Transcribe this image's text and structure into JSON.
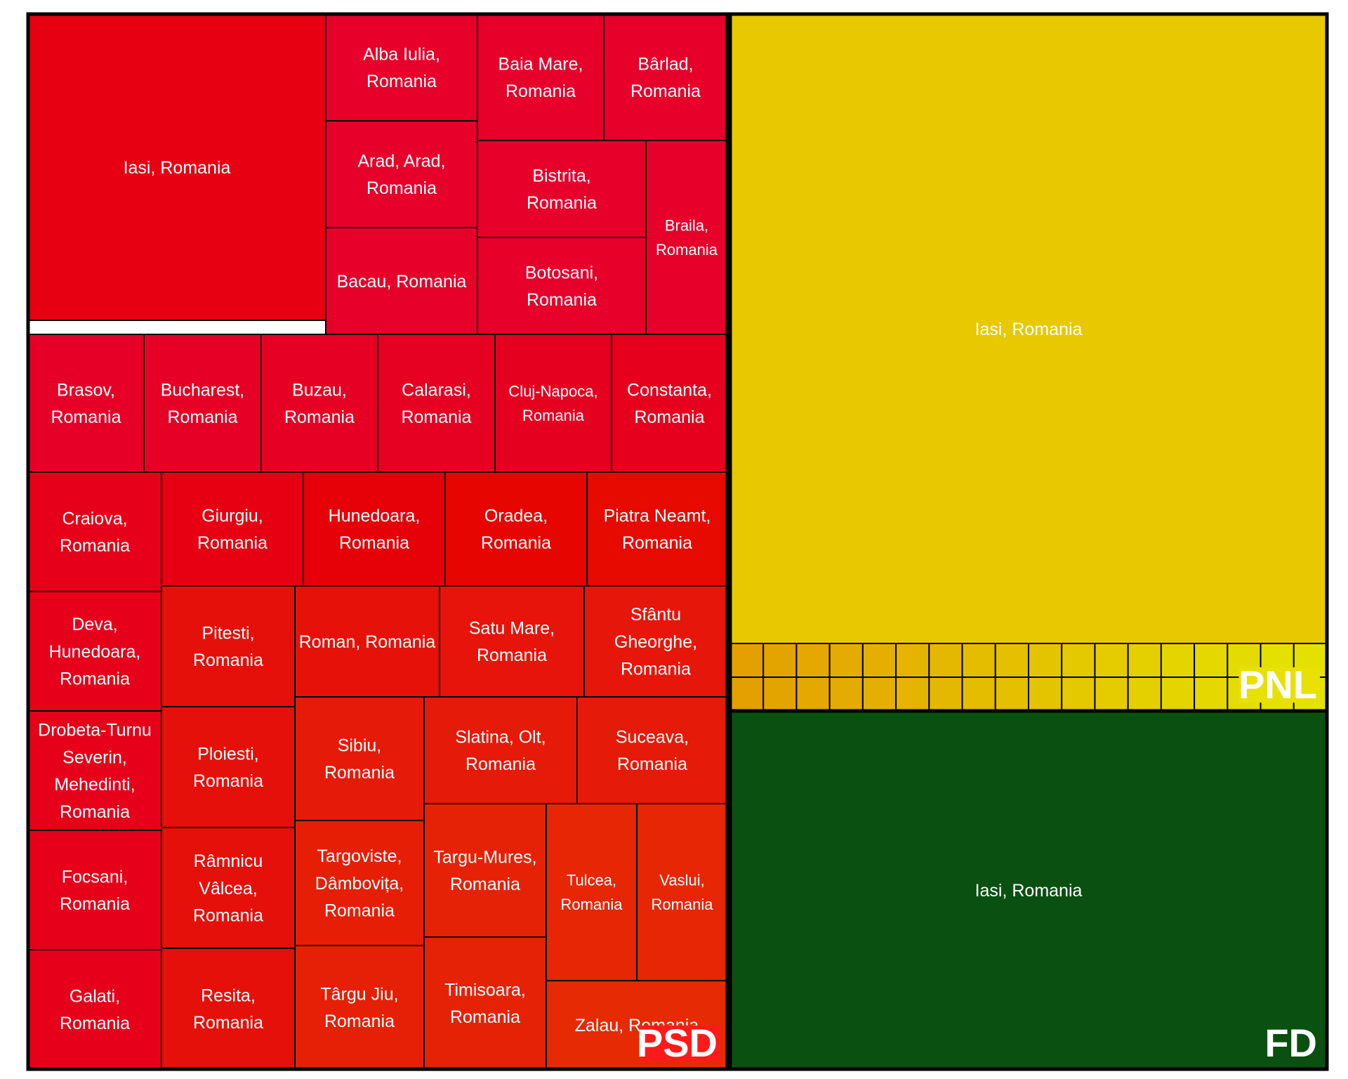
{
  "chart_data": {
    "type": "treemap",
    "title": "",
    "colors": {
      "PSD": "#e2001a",
      "PNL": "#e8c800",
      "FD": "#0a5010",
      "PSD_badge": "#ff1a1a",
      "PNL_badge": "#e8e000"
    },
    "groups": [
      {
        "name": "PSD",
        "label_position": "bottom-right",
        "items": [
          {
            "label": "Iasi, Romania",
            "value": 14.5,
            "color": "#e60012"
          },
          {
            "label": "Alba Iulia, Romania",
            "value": 2.45,
            "color": "#e6002a"
          },
          {
            "label": "Arad, Arad, Romania",
            "value": 2.45,
            "color": "#e6002a"
          },
          {
            "label": "Bacau, Romania",
            "value": 2.45,
            "color": "#e6002a"
          },
          {
            "label": "Baia Mare, Romania",
            "value": 2.45,
            "color": "#e6002a"
          },
          {
            "label": "Bârlad, Romania",
            "value": 2.45,
            "color": "#e6002a"
          },
          {
            "label": "Bistrita, Romania",
            "value": 2.45,
            "color": "#e6002a"
          },
          {
            "label": "Botosani, Romania",
            "value": 2.45,
            "color": "#e6002a"
          },
          {
            "label": "Braila, Romania",
            "value": 2.45,
            "color": "#e6002a"
          },
          {
            "label": "Brasov, Romania",
            "value": 2.45,
            "color": "#e60028"
          },
          {
            "label": "Bucharest, Romania",
            "value": 2.45,
            "color": "#e60026"
          },
          {
            "label": "Buzau, Romania",
            "value": 2.45,
            "color": "#e60024"
          },
          {
            "label": "Calarasi, Romania",
            "value": 2.45,
            "color": "#e60022"
          },
          {
            "label": "Cluj-Napoca, Romania",
            "value": 2.45,
            "color": "#e60020"
          },
          {
            "label": "Constanta, Romania",
            "value": 2.45,
            "color": "#e6001e"
          },
          {
            "label": "Craiova, Romania",
            "value": 2.45,
            "color": "#e6001a"
          },
          {
            "label": "Deva, Hunedoara, Romania",
            "value": 2.45,
            "color": "#e6001a"
          },
          {
            "label": "Drobeta-Turnu Severin, Mehedinti, Romania",
            "value": 2.45,
            "color": "#e6001a"
          },
          {
            "label": "Focsani, Romania",
            "value": 2.45,
            "color": "#e6001a"
          },
          {
            "label": "Galati, Romania",
            "value": 2.45,
            "color": "#e6001a"
          },
          {
            "label": "Giurgiu, Romania",
            "value": 2.45,
            "color": "#e60012"
          },
          {
            "label": "Hunedoara, Romania",
            "value": 2.45,
            "color": "#e60008"
          },
          {
            "label": "Oradea, Romania",
            "value": 2.45,
            "color": "#e60500"
          },
          {
            "label": "Piatra Neamt, Romania",
            "value": 2.45,
            "color": "#e60a00"
          },
          {
            "label": "Pitesti, Romania",
            "value": 2.45,
            "color": "#e6100a"
          },
          {
            "label": "Roman, Romania",
            "value": 2.45,
            "color": "#e6120a"
          },
          {
            "label": "Satu Mare, Romania",
            "value": 2.45,
            "color": "#e6140a"
          },
          {
            "label": "Sfântu Gheorghe, Romania",
            "value": 2.45,
            "color": "#e6160a"
          },
          {
            "label": "Ploiesti, Romania",
            "value": 2.45,
            "color": "#e6100a"
          },
          {
            "label": "Râmnicu Vâlcea, Romania",
            "value": 2.45,
            "color": "#e6100a"
          },
          {
            "label": "Resita, Romania",
            "value": 2.45,
            "color": "#e6100a"
          },
          {
            "label": "Sibiu, Romania",
            "value": 2.45,
            "color": "#e61a08"
          },
          {
            "label": "Slatina, Olt, Romania",
            "value": 2.45,
            "color": "#e61a08"
          },
          {
            "label": "Suceava, Romania",
            "value": 2.45,
            "color": "#e61a08"
          },
          {
            "label": "Targoviste, Dâmbovița, Romania",
            "value": 2.45,
            "color": "#e61e06"
          },
          {
            "label": "Târgu Jiu, Romania",
            "value": 2.45,
            "color": "#e62006"
          },
          {
            "label": "Targu-Mures, Romania",
            "value": 2.45,
            "color": "#e62206"
          },
          {
            "label": "Timisoara, Romania",
            "value": 2.45,
            "color": "#e62206"
          },
          {
            "label": "Tulcea, Romania",
            "value": 2.45,
            "color": "#e62604"
          },
          {
            "label": "Vaslui, Romania",
            "value": 2.45,
            "color": "#e62604"
          },
          {
            "label": "Zalau, Romania",
            "value": 2.45,
            "color": "#e62a04"
          }
        ]
      },
      {
        "name": "PNL",
        "label_position": "bottom-right",
        "items": [
          {
            "label": "Iasi, Romania",
            "value": 35,
            "color": "#e8c800"
          },
          {
            "label": "",
            "value": 0.05,
            "color": "#e4a000"
          },
          {
            "label": "",
            "value": 0.05,
            "color": "#e4a400"
          },
          {
            "label": "",
            "value": 0.05,
            "color": "#e4a800"
          },
          {
            "label": "",
            "value": 0.05,
            "color": "#e4ac00"
          },
          {
            "label": "",
            "value": 0.05,
            "color": "#e4b000"
          },
          {
            "label": "",
            "value": 0.05,
            "color": "#e4b400"
          },
          {
            "label": "",
            "value": 0.05,
            "color": "#e4b800"
          },
          {
            "label": "",
            "value": 0.05,
            "color": "#e4bc00"
          },
          {
            "label": "",
            "value": 0.05,
            "color": "#e4c000"
          },
          {
            "label": "",
            "value": 0.05,
            "color": "#e4c400"
          },
          {
            "label": "",
            "value": 0.05,
            "color": "#e4c800"
          },
          {
            "label": "",
            "value": 0.05,
            "color": "#e4cc00"
          },
          {
            "label": "",
            "value": 0.05,
            "color": "#e4d000"
          },
          {
            "label": "",
            "value": 0.05,
            "color": "#e4d400"
          },
          {
            "label": "",
            "value": 0.05,
            "color": "#e4d800"
          },
          {
            "label": "",
            "value": 0.05,
            "color": "#e4dc00"
          },
          {
            "label": "",
            "value": 0.05,
            "color": "#e4e000"
          },
          {
            "label": "",
            "value": 0.05,
            "color": "#e4e000"
          },
          {
            "label": "",
            "value": 0.05,
            "color": "#e4a000"
          },
          {
            "label": "",
            "value": 0.05,
            "color": "#e4a400"
          },
          {
            "label": "",
            "value": 0.05,
            "color": "#e4a800"
          },
          {
            "label": "",
            "value": 0.05,
            "color": "#e4ac00"
          },
          {
            "label": "",
            "value": 0.05,
            "color": "#e4b000"
          },
          {
            "label": "",
            "value": 0.05,
            "color": "#e4b400"
          },
          {
            "label": "",
            "value": 0.05,
            "color": "#e4b800"
          },
          {
            "label": "",
            "value": 0.05,
            "color": "#e4bc00"
          },
          {
            "label": "",
            "value": 0.05,
            "color": "#e4c000"
          },
          {
            "label": "",
            "value": 0.05,
            "color": "#e4c400"
          },
          {
            "label": "",
            "value": 0.05,
            "color": "#e4c800"
          },
          {
            "label": "",
            "value": 0.05,
            "color": "#e4cc00"
          },
          {
            "label": "",
            "value": 0.05,
            "color": "#e4d000"
          },
          {
            "label": "",
            "value": 0.05,
            "color": "#e4d400"
          },
          {
            "label": "",
            "value": 0.05,
            "color": "#e4d800"
          },
          {
            "label": "",
            "value": 0.05,
            "color": "#e4dc00"
          },
          {
            "label": "",
            "value": 0.05,
            "color": "#e4e000"
          },
          {
            "label": "",
            "value": 0.05,
            "color": "#e4e000"
          }
        ]
      },
      {
        "name": "FD",
        "label_position": "bottom-right",
        "items": [
          {
            "label": "Iasi, Romania",
            "value": 20,
            "color": "#0a5010"
          }
        ]
      }
    ]
  }
}
